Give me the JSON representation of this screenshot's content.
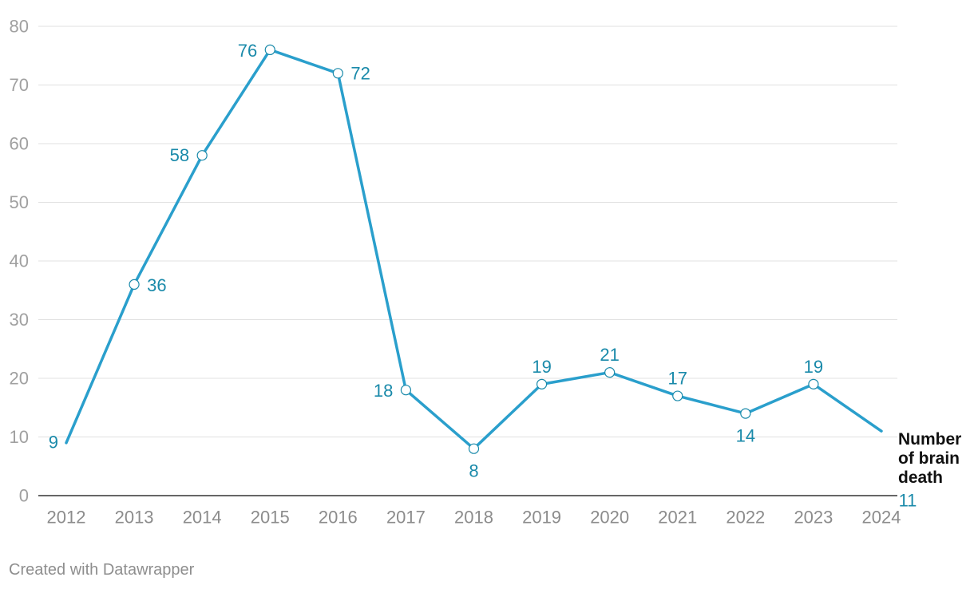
{
  "chart_data": {
    "type": "line",
    "x": [
      "2012",
      "2013",
      "2014",
      "2015",
      "2016",
      "2017",
      "2018",
      "2019",
      "2020",
      "2021",
      "2022",
      "2023",
      "2024"
    ],
    "series": [
      {
        "name": "Number of brain death",
        "values": [
          9,
          36,
          58,
          76,
          72,
          18,
          8,
          19,
          21,
          17,
          14,
          19,
          11
        ]
      }
    ],
    "data_labels": [
      "9",
      "36",
      "58",
      "76",
      "72",
      "18",
      "8",
      "19",
      "21",
      "17",
      "14",
      "19",
      "11"
    ],
    "ylim": [
      0,
      80
    ],
    "yticks": [
      0,
      10,
      20,
      30,
      40,
      50,
      60,
      70,
      80
    ],
    "grid": true,
    "legend": "inline label at end of line",
    "colors": {
      "line": "#2a9fcc",
      "label": "#1a8aaa"
    }
  },
  "footer": {
    "credit": "Created with Datawrapper"
  }
}
